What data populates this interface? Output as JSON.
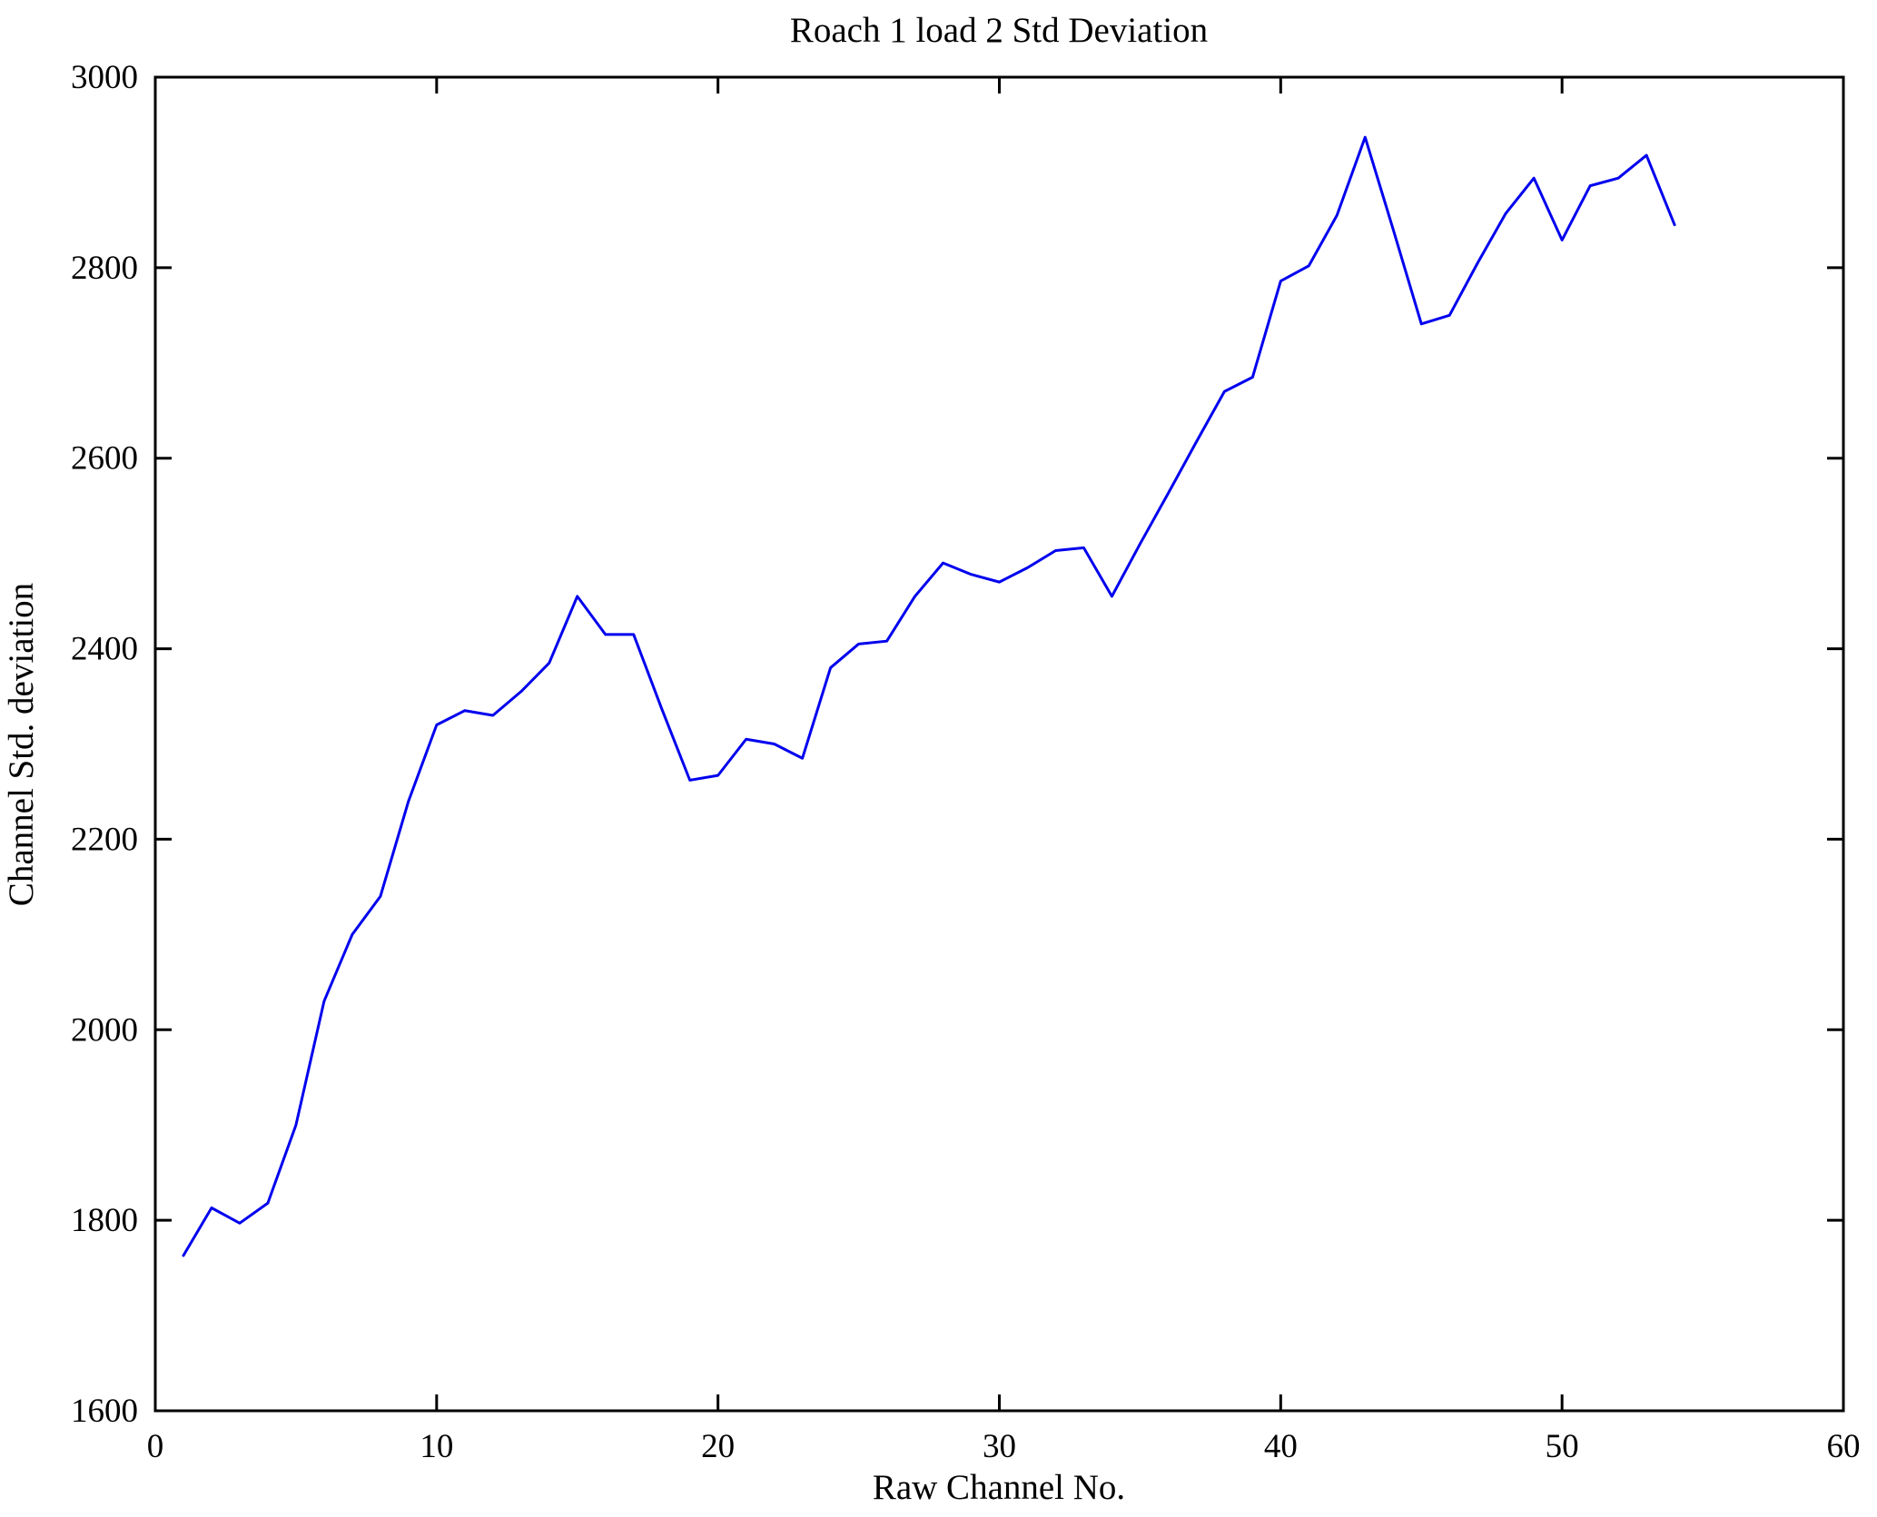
{
  "chart_data": {
    "type": "line",
    "title": "Roach 1 load 2 Std Deviation",
    "xlabel": "Raw Channel No.",
    "ylabel": "Channel Std. deviation",
    "xlim": [
      0,
      60
    ],
    "ylim": [
      1600,
      3000
    ],
    "xticks": [
      0,
      10,
      20,
      30,
      40,
      50,
      60
    ],
    "yticks": [
      1600,
      1800,
      2000,
      2200,
      2400,
      2600,
      2800,
      3000
    ],
    "grid": false,
    "legend": "none",
    "line_color": "#0000ee",
    "axis_color": "#000000",
    "background_color": "#ffffff",
    "x": [
      1,
      2,
      3,
      4,
      5,
      6,
      7,
      8,
      9,
      10,
      11,
      12,
      13,
      14,
      15,
      16,
      17,
      18,
      19,
      20,
      21,
      22,
      23,
      24,
      25,
      26,
      27,
      28,
      29,
      30,
      31,
      32,
      33,
      34,
      35,
      36,
      37,
      38,
      39,
      40,
      41,
      42,
      43,
      44,
      45,
      46,
      47,
      48,
      49,
      50,
      51,
      52,
      53,
      54
    ],
    "series": [
      {
        "name": "Channel Std deviation",
        "values": [
          1763,
          1813,
          1797,
          1818,
          1900,
          2030,
          2100,
          2140,
          2240,
          2320,
          2335,
          2330,
          2355,
          2385,
          2455,
          2415,
          2415,
          2337,
          2262,
          2267,
          2305,
          2300,
          2285,
          2380,
          2405,
          2408,
          2455,
          2490,
          2478,
          2470,
          2485,
          2503,
          2506,
          2455,
          2510,
          2563,
          2617,
          2670,
          2685,
          2786,
          2802,
          2855,
          2937,
          2840,
          2741,
          2750,
          2805,
          2857,
          2894,
          2829,
          2886,
          2894,
          2918,
          2845
        ]
      }
    ]
  }
}
